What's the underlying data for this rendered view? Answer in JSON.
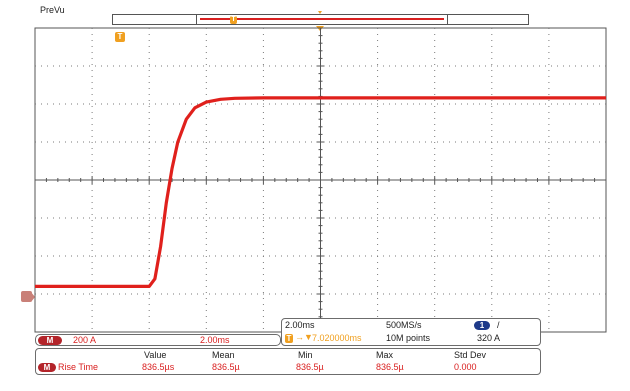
{
  "header": {
    "label": "PreVu"
  },
  "trigger_marker": {
    "glyph": "T"
  },
  "ground_marker": {
    "label": ""
  },
  "channel_readout": {
    "badge": "M",
    "vertical_scale": "200 A",
    "horizontal_scale": "2.00ms"
  },
  "timebase_panel": {
    "time_per_div": "2.00ms",
    "sample_rate": "500MS/s",
    "trigger_channel_badge": "1",
    "trigger_slope": "/",
    "trigger_offset": "7.020000ms",
    "record_length": "10M points",
    "trigger_level": "320 A"
  },
  "measurements": {
    "headers": [
      "Value",
      "Mean",
      "Min",
      "Max",
      "Std Dev"
    ],
    "row": {
      "badge": "M",
      "name": "Rise Time",
      "values": [
        "836.5µs",
        "836.5µ",
        "836.5µ",
        "836.5µ",
        "0.000"
      ]
    }
  },
  "colors": {
    "waveform": "#e0201c",
    "trigger": "#f0a020",
    "badge_math": "#b3242a",
    "badge_channel": "#1e3a8a",
    "grid": "#7a7a7a"
  },
  "chart_data": {
    "type": "line",
    "x_unit": "ms",
    "y_unit": "A",
    "x_divisions": 10,
    "y_divisions": 8,
    "x_per_div": 2.0,
    "y_per_div": 200,
    "series": [
      {
        "x": [
          0,
          4.0,
          4.2,
          4.4,
          4.6,
          4.8,
          5.0,
          5.3,
          5.6,
          6.0,
          6.5,
          7.0,
          8.0,
          10.0,
          14.0,
          20.0
        ],
        "y": [
          -560,
          -560,
          -520,
          -350,
          -120,
          60,
          200,
          320,
          380,
          410,
          425,
          430,
          432,
          432,
          432,
          432
        ]
      }
    ]
  }
}
